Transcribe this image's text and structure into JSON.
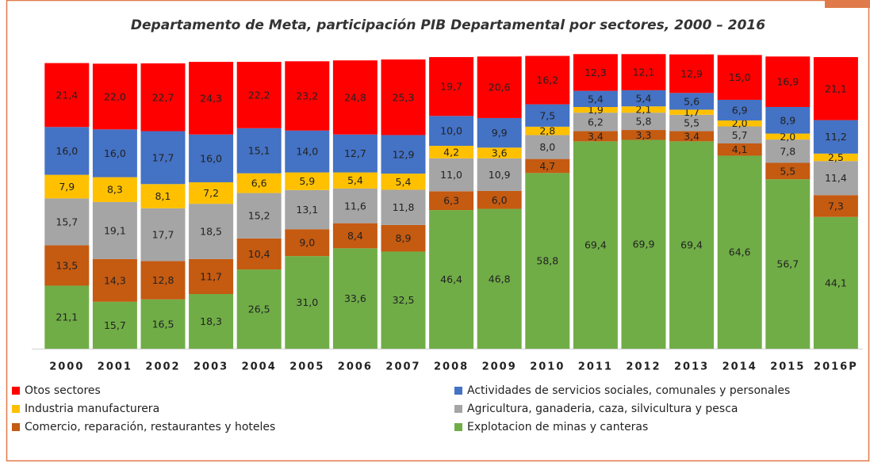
{
  "chart_data": {
    "type": "stacked_bar",
    "title": "Departamento de Meta, participación PIB Departamental por sectores, 2000 – 2016",
    "categories": [
      "2000",
      "2001",
      "2002",
      "2003",
      "2004",
      "2005",
      "2006",
      "2007",
      "2008",
      "2009",
      "2010",
      "2011",
      "2012",
      "2013",
      "2014",
      "2015",
      "2016P"
    ],
    "ylim": [
      0,
      100
    ],
    "series": [
      {
        "name": "Explotacion de minas y canteras",
        "color": "#70ad47",
        "values": [
          21.1,
          15.7,
          16.5,
          18.3,
          26.5,
          31.0,
          33.6,
          32.5,
          46.4,
          46.8,
          58.8,
          69.4,
          69.9,
          69.4,
          64.6,
          56.7,
          44.1
        ],
        "value_labels": [
          "21,1",
          "15,7",
          "16,5",
          "18,3",
          "26,5",
          "31,0",
          "33,6",
          "32,5",
          "46,4",
          "46,8",
          "58,8",
          "69,4",
          "69,9",
          "69,4",
          "64,6",
          "56,7",
          "44,1"
        ]
      },
      {
        "name": "Comercio, reparación, restaurantes y hoteles",
        "color": "#c55a11",
        "values": [
          13.5,
          14.3,
          12.8,
          11.7,
          10.4,
          9.0,
          8.4,
          8.9,
          6.3,
          6.0,
          4.7,
          3.4,
          3.3,
          3.4,
          4.1,
          5.5,
          7.3
        ],
        "value_labels": [
          "13,5",
          "14,3",
          "12,8",
          "11,7",
          "10,4",
          "9,0",
          "8,4",
          "8,9",
          "6,3",
          "6,0",
          "4,7",
          "3,4",
          "3,3",
          "3,4",
          "4,1",
          "5,5",
          "7,3"
        ]
      },
      {
        "name": "Agricultura, ganaderia, caza, silvicultura y pesca",
        "color": "#a5a5a5",
        "values": [
          15.7,
          19.1,
          17.7,
          18.5,
          15.2,
          13.1,
          11.6,
          11.8,
          11.0,
          10.9,
          8.0,
          6.2,
          5.8,
          5.5,
          5.7,
          7.8,
          11.4
        ],
        "value_labels": [
          "15,7",
          "19,1",
          "17,7",
          "18,5",
          "15,2",
          "13,1",
          "11,6",
          "11,8",
          "11,0",
          "10,9",
          "8,0",
          "6,2",
          "5,8",
          "5,5",
          "5,7",
          "7,8",
          "11,4"
        ]
      },
      {
        "name": "Industria manufacturera",
        "color": "#ffc000",
        "values": [
          7.9,
          8.3,
          8.1,
          7.2,
          6.6,
          5.9,
          5.4,
          5.4,
          4.2,
          3.6,
          2.8,
          1.9,
          2.1,
          1.7,
          2.0,
          2.0,
          2.5
        ],
        "value_labels": [
          "7,9",
          "8,3",
          "8,1",
          "7,2",
          "6,6",
          "5,9",
          "5,4",
          "5,4",
          "4,2",
          "3,6",
          "2,8",
          "1,9",
          "2,1",
          "1,7",
          "2,0",
          "2,0",
          "2,5"
        ]
      },
      {
        "name": "Actividades de servicios sociales, comunales y personales",
        "color": "#4472c4",
        "values": [
          16.0,
          16.0,
          17.7,
          16.0,
          15.1,
          14.0,
          12.7,
          12.9,
          10.0,
          9.9,
          7.5,
          5.4,
          5.4,
          5.6,
          6.9,
          8.9,
          11.2
        ],
        "value_labels": [
          "16,0",
          "16,0",
          "17,7",
          "16,0",
          "15,1",
          "14,0",
          "12,7",
          "12,9",
          "10,0",
          "9,9",
          "7,5",
          "5,4",
          "5,4",
          "5,6",
          "6,9",
          "8,9",
          "11,2"
        ]
      },
      {
        "name": "Otos sectores",
        "color": "#ff0000",
        "values": [
          21.4,
          22.0,
          22.7,
          24.3,
          22.2,
          23.2,
          24.8,
          25.3,
          19.7,
          20.6,
          16.2,
          12.3,
          12.1,
          12.9,
          15.0,
          16.9,
          21.1
        ],
        "value_labels": [
          "21,4",
          "22,0",
          "22,7",
          "24,3",
          "22,2",
          "23,2",
          "24,8",
          "25,3",
          "19,7",
          "20,6",
          "16,2",
          "12,3",
          "12,1",
          "12,9",
          "15,0",
          "16,9",
          "21,1"
        ]
      }
    ]
  }
}
